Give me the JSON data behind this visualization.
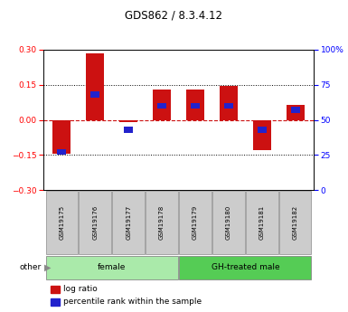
{
  "title": "GDS862 / 8.3.4.12",
  "samples": [
    "GSM19175",
    "GSM19176",
    "GSM19177",
    "GSM19178",
    "GSM19179",
    "GSM19180",
    "GSM19181",
    "GSM19182"
  ],
  "log_ratio": [
    -0.145,
    0.285,
    -0.01,
    0.13,
    0.13,
    0.145,
    -0.13,
    0.065
  ],
  "percentile_rank": [
    27,
    68,
    43,
    60,
    60,
    60,
    43,
    57
  ],
  "groups": [
    {
      "label": "female",
      "start": 0,
      "end": 3,
      "color": "#aaeaaa"
    },
    {
      "label": "GH-treated male",
      "start": 4,
      "end": 7,
      "color": "#55cc55"
    }
  ],
  "ylim_left": [
    -0.3,
    0.3
  ],
  "ylim_right": [
    0,
    100
  ],
  "bar_color": "#cc1111",
  "blue_color": "#2222cc",
  "hline_color": "#cc1111",
  "dotline_color": "black",
  "grid_values": [
    0.15,
    -0.15
  ],
  "right_ticks": [
    0,
    25,
    50,
    75,
    100
  ],
  "right_tick_labels": [
    "0",
    "25",
    "50",
    "75",
    "100%"
  ],
  "left_ticks": [
    -0.3,
    -0.15,
    0,
    0.15,
    0.3
  ],
  "bar_width": 0.55,
  "background_color": "#ffffff",
  "other_label": "other",
  "legend_red": "log ratio",
  "legend_blue": "percentile rank within the sample"
}
